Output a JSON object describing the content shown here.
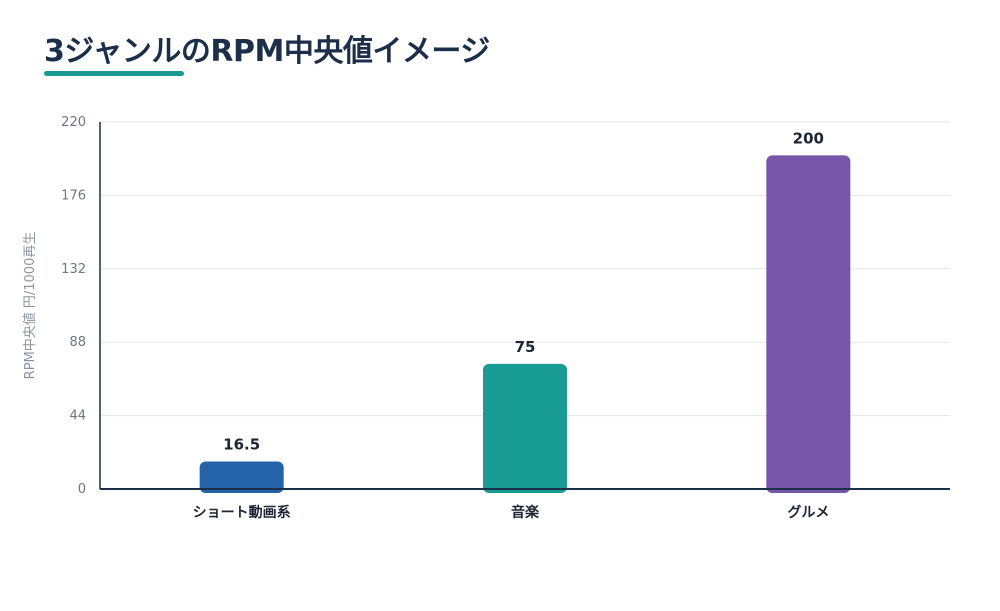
{
  "chart_data": {
    "type": "bar",
    "title": "3ジャンルのRPM中央値イメージ",
    "xlabel": "",
    "ylabel": "RPM中央値 円/1000再生",
    "categories": [
      "ショート動画系",
      "音楽",
      "グルメ"
    ],
    "values": [
      16.5,
      75,
      200
    ],
    "value_labels": [
      "16.5",
      "75",
      "200"
    ],
    "ylim": [
      0,
      220
    ],
    "yticks": [
      0,
      44,
      88,
      132,
      176,
      220
    ],
    "grid": true,
    "legend": "none"
  },
  "colors": {
    "title": "#1c2f4a",
    "accent": "#179b92",
    "bars": [
      "#2563a8",
      "#179b92",
      "#7755a8"
    ],
    "grid": "#e3e6ea",
    "axis": "#1c2f4a"
  }
}
